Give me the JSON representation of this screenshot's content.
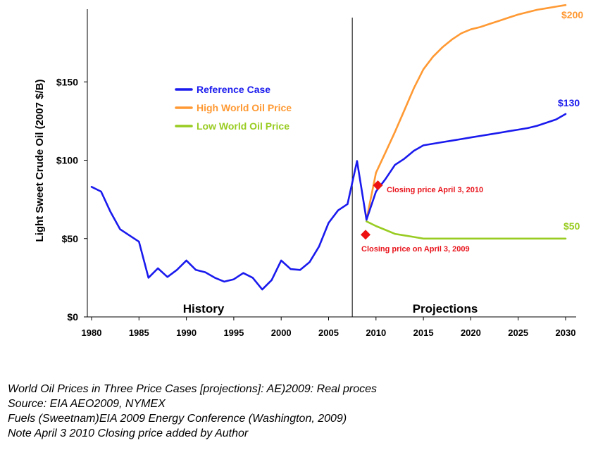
{
  "chart_data": {
    "type": "line",
    "ylabel": "Light Sweet Crude Oil (2007 $/B)",
    "xlim": [
      1980,
      2030
    ],
    "ylim": [
      0,
      200
    ],
    "x_ticks": [
      1980,
      1985,
      1990,
      1995,
      2000,
      2005,
      2010,
      2015,
      2020,
      2025,
      2030
    ],
    "y_ticks": [
      {
        "value": 0,
        "label": "$0"
      },
      {
        "value": 50,
        "label": "$50"
      },
      {
        "value": 100,
        "label": "$100"
      },
      {
        "value": 150,
        "label": "$150"
      }
    ],
    "grid": false,
    "legend_position": "upper-left",
    "divider_x": 2007.5,
    "region_labels": {
      "history": "History",
      "projections": "Projections"
    },
    "series": [
      {
        "name": "Reference Case",
        "color": "#1a1aee",
        "x": [
          1980,
          1981,
          1982,
          1983,
          1984,
          1985,
          1986,
          1987,
          1988,
          1989,
          1990,
          1991,
          1992,
          1993,
          1994,
          1995,
          1996,
          1997,
          1998,
          1999,
          2000,
          2001,
          2002,
          2003,
          2004,
          2005,
          2006,
          2007,
          2008,
          2009,
          2010,
          2011,
          2012,
          2013,
          2014,
          2015,
          2016,
          2017,
          2018,
          2019,
          2020,
          2021,
          2022,
          2023,
          2024,
          2025,
          2026,
          2027,
          2028,
          2029,
          2030
        ],
        "values": [
          83,
          80,
          67,
          56,
          52,
          48,
          25,
          31,
          25.5,
          30,
          36,
          30,
          28.5,
          25,
          22.5,
          24,
          28,
          25,
          17.5,
          23.5,
          36,
          30.5,
          30,
          35,
          45,
          60,
          68,
          72,
          99.5,
          62,
          80,
          88,
          97,
          101,
          106,
          109.5,
          110.5,
          111.5,
          112.5,
          113.5,
          114.5,
          115.5,
          116.5,
          117.5,
          118.5,
          119.5,
          120.5,
          122,
          124,
          126,
          129.5
        ],
        "end_label": "$130"
      },
      {
        "name": "High World Oil Price",
        "color": "#ff9933",
        "x": [
          2009,
          2010,
          2011,
          2012,
          2013,
          2014,
          2015,
          2016,
          2017,
          2018,
          2019,
          2020,
          2021,
          2022,
          2023,
          2024,
          2025,
          2026,
          2027,
          2028,
          2029,
          2030
        ],
        "values": [
          62,
          92,
          105,
          118,
          132,
          146,
          158,
          166,
          172,
          177,
          181,
          183.5,
          185,
          187,
          189,
          191,
          193,
          194.5,
          196,
          197,
          198,
          199
        ],
        "end_label": "$200"
      },
      {
        "name": "Low World Oil Price",
        "color": "#99cc22",
        "x": [
          2009,
          2010,
          2011,
          2012,
          2013,
          2014,
          2015,
          2016,
          2017,
          2018,
          2019,
          2020,
          2021,
          2022,
          2023,
          2024,
          2025,
          2026,
          2027,
          2028,
          2029,
          2030
        ],
        "values": [
          61,
          58,
          55.5,
          53,
          52,
          51,
          50,
          50,
          50,
          50,
          50,
          50,
          50,
          50,
          50,
          50,
          50,
          50,
          50,
          50,
          50,
          50
        ],
        "end_label": "$50"
      }
    ],
    "annotations": [
      {
        "x": 2010.2,
        "y": 84,
        "label": "Closing price April 3, 2010",
        "color": "#e8141c",
        "marker_color": "#ee1111"
      },
      {
        "x": 2008.9,
        "y": 52.5,
        "label": "Closing price on April 3, 2009",
        "color": "#e8141c",
        "marker_color": "#ee1111"
      }
    ]
  },
  "caption": [
    "World Oil Prices in Three Price Cases [projections]:  AE)2009:  Real proces",
    "Source:  EIA AEO2009, NYMEX",
    "Fuels (Sweetnam)EIA 2009 Energy Conference (Washington, 2009)",
    "Note April 3 2010 Closing price added by Author"
  ]
}
